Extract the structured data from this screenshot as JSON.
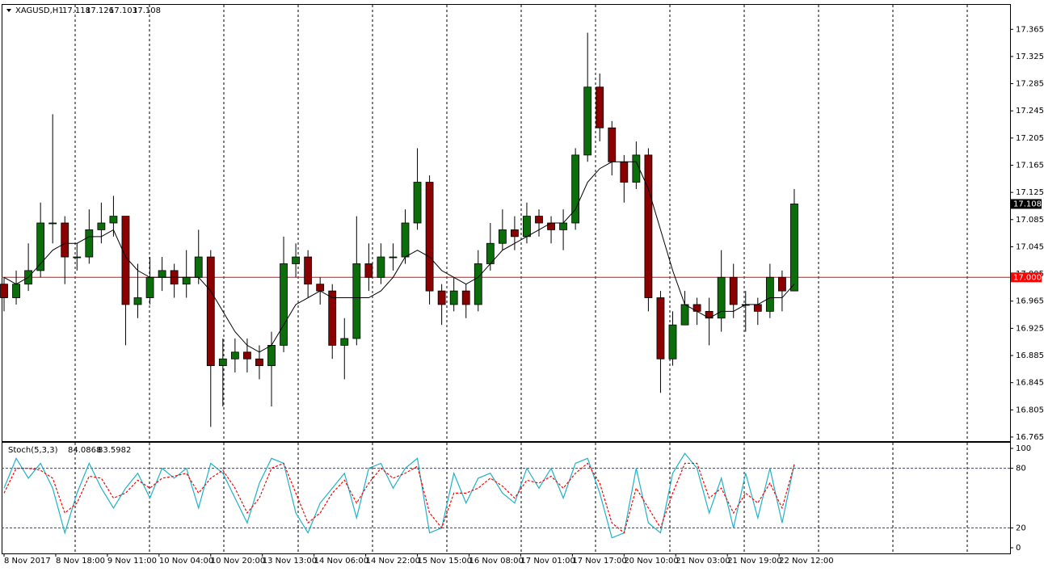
{
  "chart_data": [
    {
      "type": "candlestick",
      "title": "XAGUSD,H1",
      "quote": [
        17.118,
        17.126,
        17.103,
        17.108
      ],
      "up_color": "#0b6e0b",
      "down_color": "#8b0000",
      "ma_color": "#000000",
      "x": [
        0,
        4,
        8,
        12,
        16,
        20,
        24,
        28,
        32,
        36,
        40,
        44,
        48,
        52,
        56,
        60,
        64,
        68,
        72,
        76,
        80,
        84,
        88,
        92,
        96,
        100,
        104,
        108,
        112,
        116,
        120,
        124,
        128,
        132,
        136,
        140,
        144,
        148,
        152,
        156,
        160,
        164,
        168,
        172,
        176,
        180,
        184,
        188,
        192,
        196,
        200,
        204,
        208,
        212,
        216,
        220,
        224,
        228,
        232,
        236,
        240,
        244,
        248,
        252,
        256,
        260
      ],
      "open": [
        16.99,
        16.97,
        16.99,
        17.01,
        17.08,
        17.08,
        17.03,
        17.03,
        17.07,
        17.08,
        17.09,
        16.96,
        16.97,
        17.0,
        17.01,
        16.99,
        17.0,
        17.03,
        16.87,
        16.88,
        16.89,
        16.88,
        16.87,
        16.9,
        17.02,
        17.03,
        16.99,
        16.98,
        16.9,
        16.91,
        17.02,
        17.0,
        17.03,
        17.03,
        17.08,
        17.14,
        16.98,
        16.96,
        16.98,
        16.96,
        17.02,
        17.05,
        17.07,
        17.06,
        17.09,
        17.08,
        17.07,
        17.08,
        17.18,
        17.28,
        17.22,
        17.17,
        17.14,
        17.18,
        16.97,
        16.88,
        16.93,
        16.96,
        16.95,
        16.94,
        17.0,
        16.96,
        16.96,
        16.95,
        17.0,
        16.98
      ],
      "high": [
        17.0,
        17.01,
        17.05,
        17.11,
        17.24,
        17.09,
        17.05,
        17.1,
        17.11,
        17.12,
        17.09,
        17.02,
        17.03,
        17.03,
        17.02,
        17.04,
        17.07,
        17.04,
        16.91,
        16.91,
        16.91,
        16.9,
        16.92,
        17.06,
        17.05,
        17.04,
        17.0,
        16.99,
        16.94,
        17.09,
        17.05,
        17.05,
        17.05,
        17.1,
        17.19,
        17.15,
        16.99,
        17.0,
        16.99,
        17.04,
        17.08,
        17.1,
        17.09,
        17.11,
        17.1,
        17.09,
        17.1,
        17.19,
        17.36,
        17.3,
        17.23,
        17.18,
        17.2,
        17.19,
        16.98,
        16.95,
        16.98,
        16.97,
        16.97,
        17.04,
        17.02,
        16.98,
        16.97,
        17.02,
        17.01,
        17.13
      ],
      "low": [
        16.95,
        16.96,
        16.98,
        17.0,
        17.05,
        16.99,
        17.01,
        17.02,
        17.05,
        17.06,
        16.9,
        16.94,
        16.96,
        16.98,
        16.97,
        16.97,
        16.99,
        16.78,
        16.81,
        16.86,
        16.86,
        16.85,
        16.81,
        16.89,
        17.0,
        16.97,
        16.96,
        16.88,
        16.85,
        16.9,
        16.98,
        16.99,
        17.01,
        17.02,
        17.07,
        16.96,
        16.93,
        16.95,
        16.94,
        16.95,
        17.01,
        17.04,
        17.04,
        17.05,
        17.06,
        17.05,
        17.04,
        17.07,
        17.17,
        17.2,
        17.15,
        17.11,
        17.13,
        16.95,
        16.83,
        16.87,
        16.93,
        16.93,
        16.9,
        16.92,
        16.94,
        16.92,
        16.93,
        16.94,
        16.95,
        16.98
      ],
      "close": [
        16.97,
        16.99,
        17.01,
        17.08,
        17.08,
        17.03,
        17.03,
        17.07,
        17.08,
        17.09,
        16.96,
        16.97,
        17.0,
        17.01,
        16.99,
        17.0,
        17.03,
        16.87,
        16.88,
        16.89,
        16.88,
        16.87,
        16.9,
        17.02,
        17.03,
        16.99,
        16.98,
        16.9,
        16.91,
        17.02,
        17.0,
        17.03,
        17.03,
        17.08,
        17.14,
        16.98,
        16.96,
        16.98,
        16.96,
        17.02,
        17.05,
        17.07,
        17.06,
        17.09,
        17.08,
        17.07,
        17.08,
        17.18,
        17.28,
        17.22,
        17.17,
        17.14,
        17.18,
        16.97,
        16.88,
        16.93,
        16.96,
        16.95,
        16.94,
        17.0,
        16.96,
        16.96,
        16.95,
        17.0,
        16.98,
        17.108
      ],
      "ma": [
        17.0,
        16.99,
        17.0,
        17.02,
        17.04,
        17.05,
        17.05,
        17.06,
        17.06,
        17.07,
        17.03,
        17.01,
        17.0,
        17.0,
        17.0,
        17.0,
        17.0,
        16.98,
        16.95,
        16.92,
        16.9,
        16.89,
        16.9,
        16.93,
        16.96,
        16.97,
        16.98,
        16.97,
        16.97,
        16.97,
        16.97,
        16.98,
        17.0,
        17.03,
        17.04,
        17.03,
        17.01,
        17.0,
        16.99,
        17.0,
        17.02,
        17.04,
        17.05,
        17.06,
        17.07,
        17.08,
        17.08,
        17.1,
        17.14,
        17.16,
        17.17,
        17.17,
        17.17,
        17.13,
        17.07,
        17.01,
        16.96,
        16.95,
        16.94,
        16.95,
        16.95,
        16.96,
        16.96,
        16.97,
        16.97,
        16.99
      ],
      "hline": {
        "value": 17,
        "label": "17.000",
        "color": "#ff0000"
      },
      "xlim": [
        -0.8,
        331
      ],
      "xticks": [
        {
          "value": 0,
          "label": "8 Nov 2017"
        },
        {
          "value": 17,
          "label": "8 Nov 18:00"
        },
        {
          "value": 34,
          "label": "9 Nov 11:00"
        },
        {
          "value": 51,
          "label": "10 Nov 04:00"
        },
        {
          "value": 68,
          "label": "10 Nov 20:00"
        },
        {
          "value": 85,
          "label": "13 Nov 13:00"
        },
        {
          "value": 102,
          "label": "14 Nov 06:00"
        },
        {
          "value": 119,
          "label": "14 Nov 22:00"
        },
        {
          "value": 136,
          "label": "15 Nov 15:00"
        },
        {
          "value": 153,
          "label": "16 Nov 08:00"
        },
        {
          "value": 170,
          "label": "17 Nov 01:00"
        },
        {
          "value": 187,
          "label": "17 Nov 17:00"
        },
        {
          "value": 204,
          "label": "20 Nov 10:00"
        },
        {
          "value": 221,
          "label": "21 Nov 03:00"
        },
        {
          "value": 238,
          "label": "21 Nov 19:00"
        },
        {
          "value": 255,
          "label": "22 Nov 12:00"
        }
      ],
      "ylim": [
        16.759,
        17.401
      ],
      "yticks": [
        16.765,
        16.805,
        16.845,
        16.885,
        16.925,
        16.965,
        17.005,
        17.045,
        17.085,
        17.125,
        17.165,
        17.205,
        17.245,
        17.285,
        17.325,
        17.365
      ]
    },
    {
      "type": "line",
      "title": "Stoch(5,3,3)",
      "series": [
        {
          "color": "#20b2c8",
          "values": [
            60,
            90,
            70,
            85,
            60,
            15,
            55,
            85,
            60,
            40,
            60,
            75,
            50,
            80,
            70,
            80,
            40,
            85,
            75,
            50,
            25,
            65,
            90,
            85,
            35,
            15,
            45,
            60,
            75,
            30,
            80,
            85,
            60,
            80,
            90,
            15,
            20,
            75,
            45,
            70,
            75,
            55,
            45,
            80,
            60,
            80,
            50,
            85,
            90,
            55,
            10,
            15,
            80,
            25,
            15,
            75,
            95,
            80,
            35,
            70,
            20,
            75,
            30,
            80,
            25,
            84.0868
          ]
        },
        {
          "color": "#ff0000",
          "dashed": true,
          "values": [
            55,
            80,
            80,
            78,
            70,
            35,
            45,
            72,
            70,
            50,
            55,
            68,
            60,
            70,
            72,
            75,
            55,
            70,
            78,
            60,
            35,
            50,
            80,
            85,
            55,
            25,
            35,
            55,
            68,
            45,
            65,
            80,
            70,
            75,
            82,
            35,
            20,
            55,
            55,
            60,
            70,
            62,
            50,
            68,
            65,
            72,
            60,
            75,
            85,
            65,
            25,
            15,
            60,
            40,
            20,
            55,
            85,
            85,
            50,
            60,
            35,
            55,
            45,
            65,
            40,
            83.5982
          ]
        }
      ],
      "levels": [
        80,
        20
      ],
      "level_color": "#1f3fbf",
      "ylim": [
        -5.7,
        105.7
      ],
      "yticks": [
        0,
        20,
        80,
        100
      ]
    }
  ]
}
